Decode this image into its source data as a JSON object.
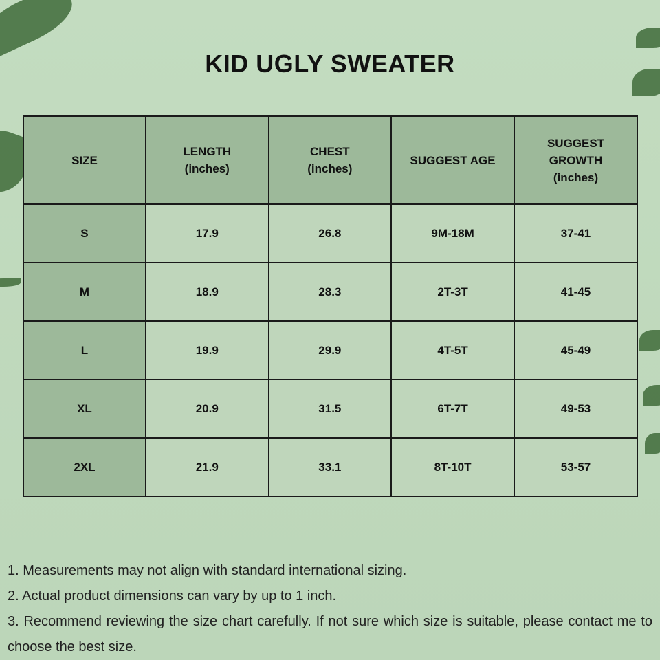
{
  "title": "KID UGLY SWEATER",
  "table": {
    "headers": [
      [
        "SIZE"
      ],
      [
        "LENGTH",
        "(inches)"
      ],
      [
        "CHEST",
        "(inches)"
      ],
      [
        "SUGGEST AGE"
      ],
      [
        "SUGGEST",
        "GROWTH",
        "(inches)"
      ]
    ],
    "rows": [
      [
        "S",
        "17.9",
        "26.8",
        "9M-18M",
        "37-41"
      ],
      [
        "M",
        "18.9",
        "28.3",
        "2T-3T",
        "41-45"
      ],
      [
        "L",
        "19.9",
        "29.9",
        "4T-5T",
        "45-49"
      ],
      [
        "XL",
        "20.9",
        "31.5",
        "6T-7T",
        "49-53"
      ],
      [
        "2XL",
        "21.9",
        "33.1",
        "8T-10T",
        "53-57"
      ]
    ]
  },
  "notes": [
    "1. Measurements may not align with standard international sizing.",
    "2. Actual product dimensions can vary by up to 1 inch.",
    "3. Recommend reviewing the size chart carefully. If not sure which size is suitable, please contact me to choose the best size."
  ],
  "colors": {
    "background": "#c3dcc0",
    "header": "#9db99a",
    "cell": "#bfd6bb",
    "border": "#1a1a1a"
  }
}
